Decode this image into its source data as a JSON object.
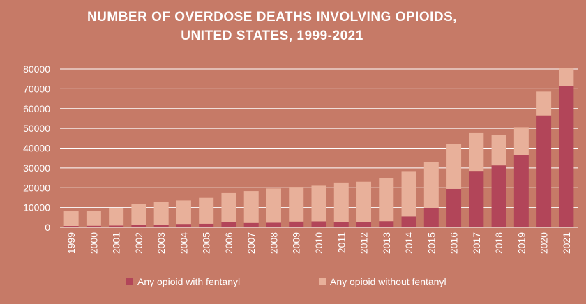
{
  "chart_data": {
    "type": "bar",
    "stacked": true,
    "title_lines": [
      "NUMBER OF OVERDOSE DEATHS INVOLVING OPIOIDS,",
      "UNITED STATES, 1999-2021"
    ],
    "categories": [
      "1999",
      "2000",
      "2001",
      "2002",
      "2003",
      "2004",
      "2005",
      "2006",
      "2007",
      "2008",
      "2009",
      "2010",
      "2011",
      "2012",
      "2013",
      "2014",
      "2015",
      "2016",
      "2017",
      "2018",
      "2019",
      "2020",
      "2021"
    ],
    "series": [
      {
        "name": "Any opioid with fentanyl",
        "color": "#b24559",
        "values": [
          700,
          800,
          900,
          1200,
          1400,
          1700,
          1800,
          2700,
          2200,
          2300,
          2900,
          3000,
          2700,
          2600,
          3100,
          5500,
          9600,
          19400,
          28500,
          31300,
          36400,
          56500,
          71200
        ]
      },
      {
        "name": "Any opioid without fentanyl",
        "color": "#e8b09a",
        "values": [
          7400,
          7600,
          8800,
          10700,
          11400,
          11900,
          13100,
          14600,
          16100,
          17300,
          17500,
          18000,
          19900,
          20400,
          21900,
          22900,
          23500,
          22700,
          19100,
          15500,
          14200,
          12100,
          9400
        ]
      }
    ],
    "ylim": [
      0,
      80000
    ],
    "yticks": [
      0,
      10000,
      20000,
      30000,
      40000,
      50000,
      60000,
      70000,
      80000
    ],
    "grid": true,
    "legend_position": "bottom"
  }
}
